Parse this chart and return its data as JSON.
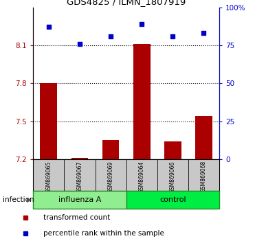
{
  "title": "GDS4825 / ILMN_1807919",
  "samples": [
    "GSM869065",
    "GSM869067",
    "GSM869069",
    "GSM869064",
    "GSM869066",
    "GSM869068"
  ],
  "group_labels": [
    "influenza A",
    "control"
  ],
  "influenza_color": "#90EE90",
  "control_color": "#00EE44",
  "bar_color": "#AA0000",
  "marker_color": "#0000CC",
  "transformed_counts": [
    7.8,
    7.21,
    7.35,
    8.11,
    7.34,
    7.54
  ],
  "percentile_ranks": [
    87,
    76,
    81,
    89,
    81,
    83
  ],
  "ylim_left": [
    7.2,
    8.4
  ],
  "ylim_right": [
    0,
    100
  ],
  "yticks_left": [
    7.2,
    7.5,
    7.8,
    8.1
  ],
  "yticks_right": [
    0,
    25,
    50,
    75,
    100
  ],
  "ytick_labels_left": [
    "7.2",
    "7.5",
    "7.8",
    "8.1"
  ],
  "ytick_labels_right": [
    "0",
    "25",
    "50",
    "75",
    "100%"
  ],
  "group_name": "infection",
  "legend_red": "transformed count",
  "legend_blue": "percentile rank within the sample",
  "bar_bottom": 7.2,
  "sample_box_color": "#C8C8C8"
}
